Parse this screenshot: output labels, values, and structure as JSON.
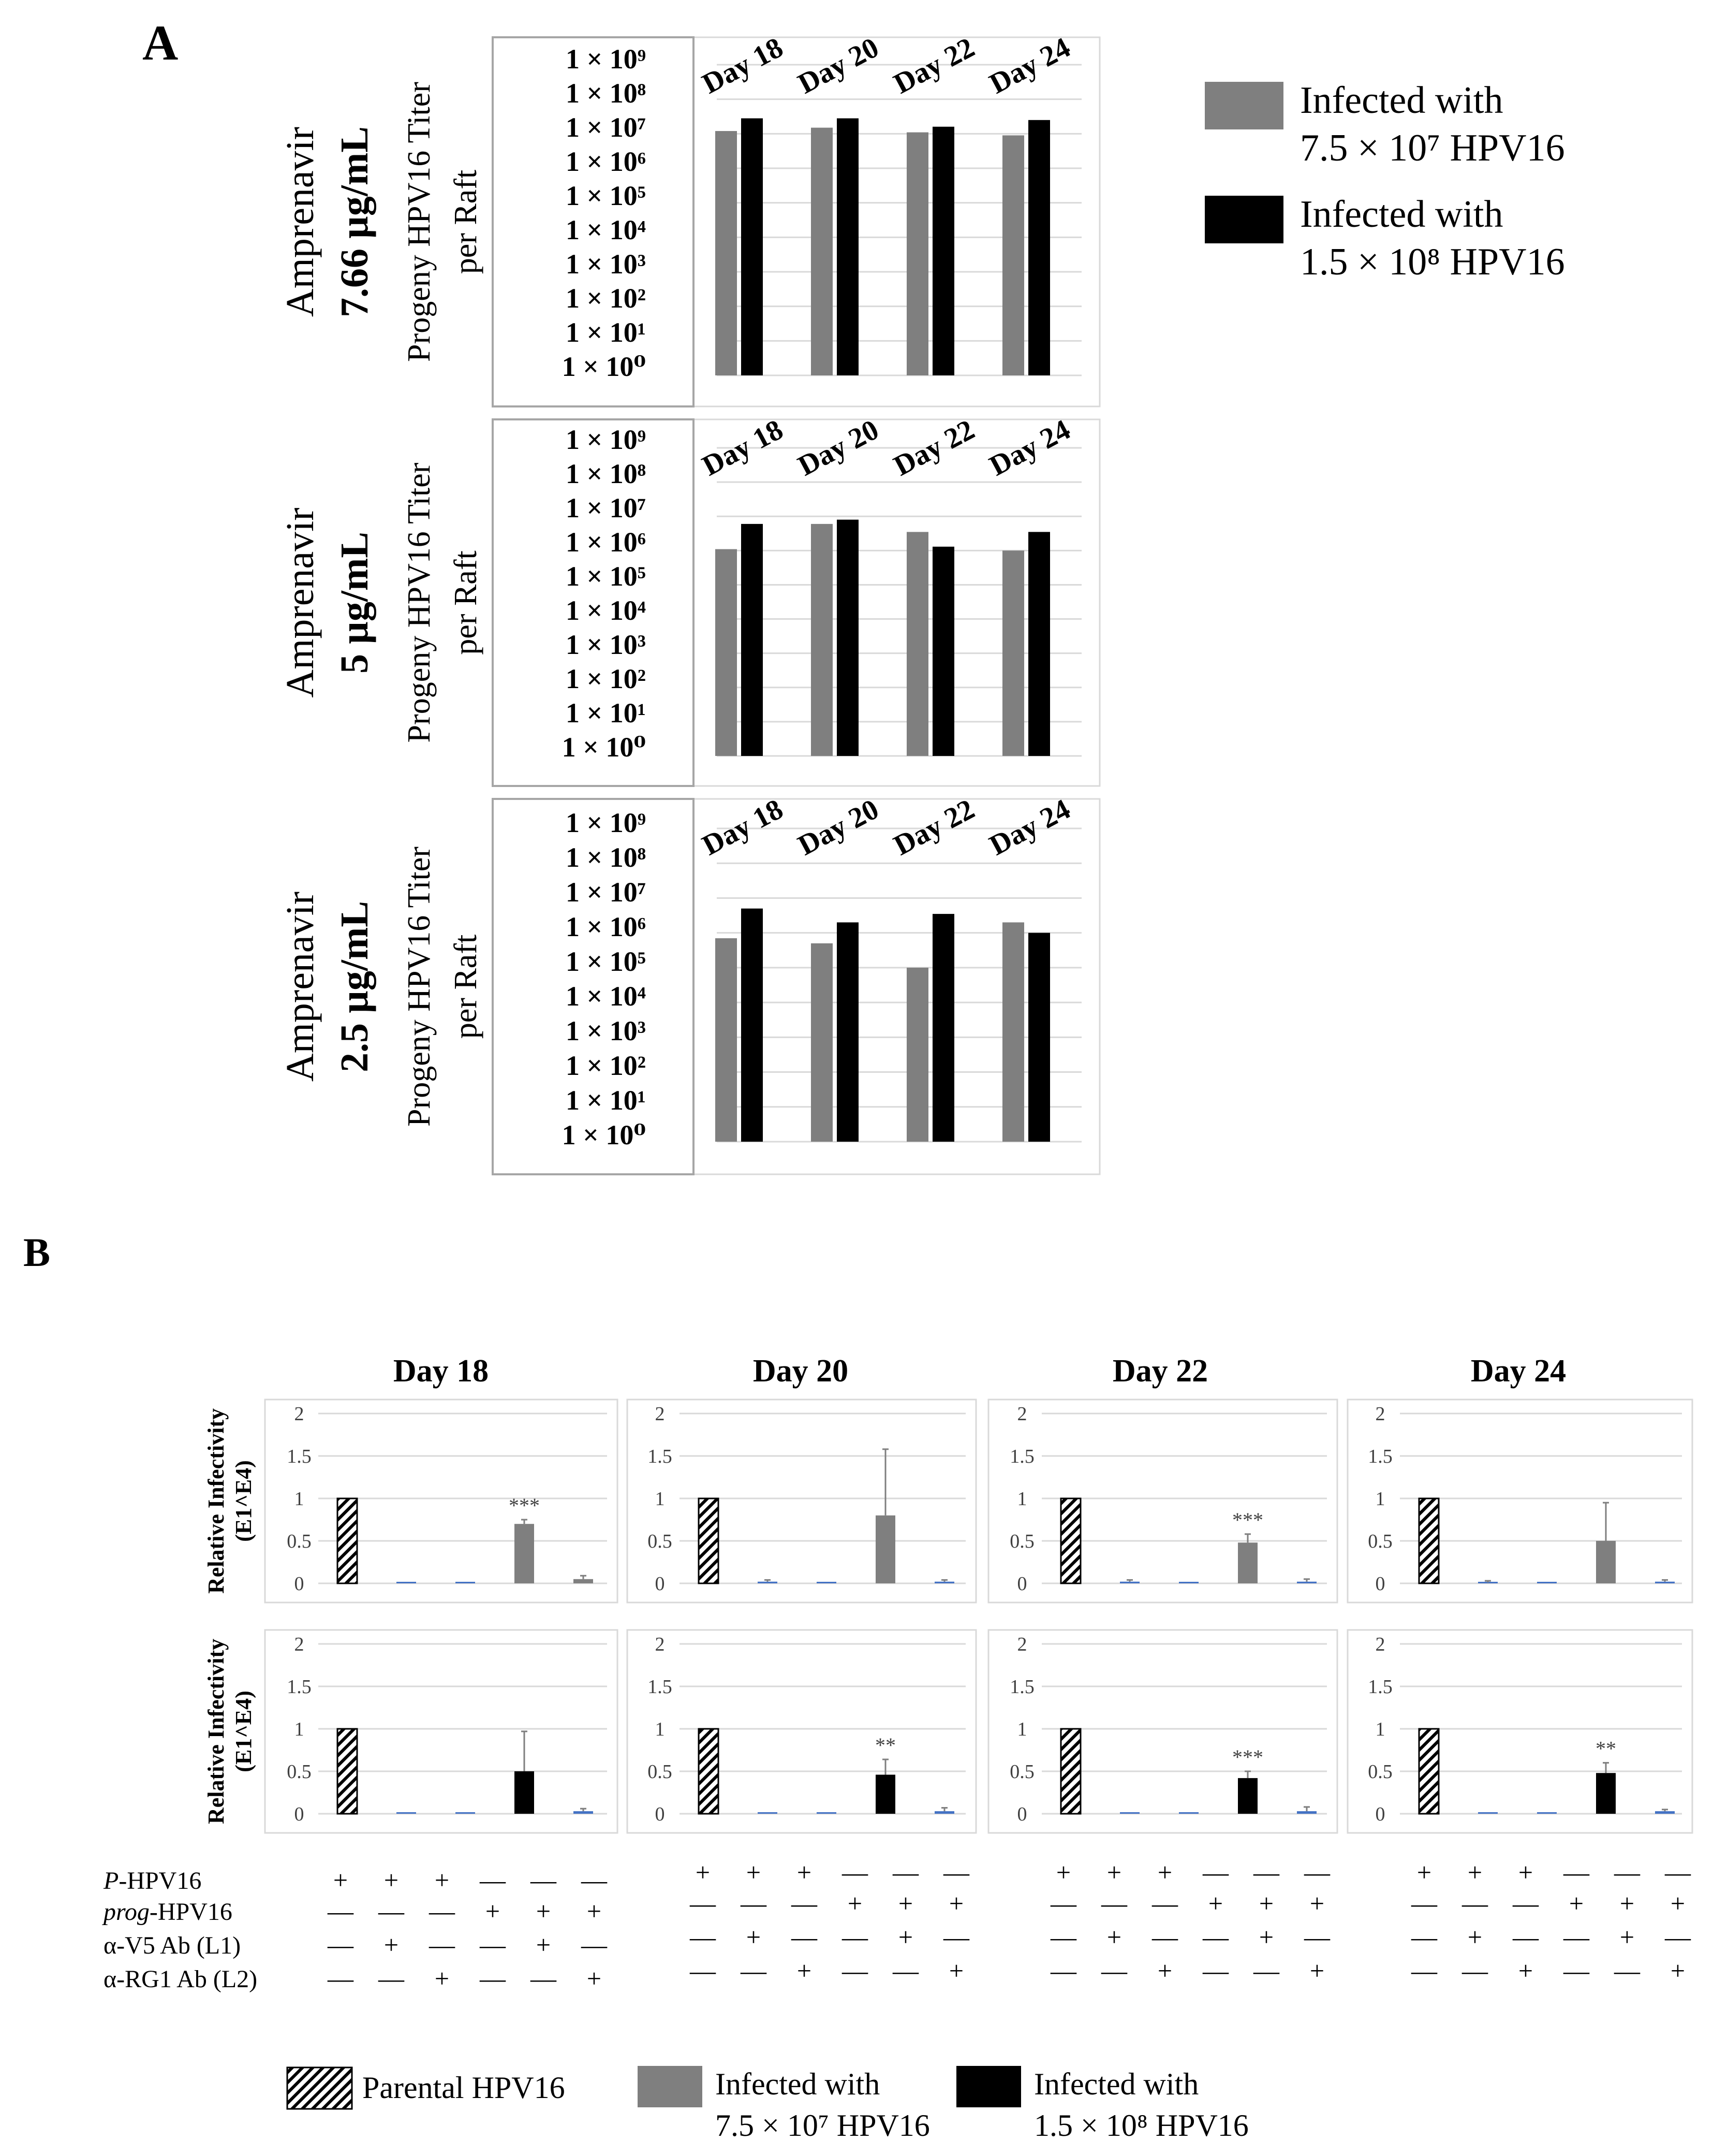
{
  "panel_a": {
    "label": "A",
    "ytick_labels": [
      "1 × 10⁹",
      "1 × 10⁸",
      "1 × 10⁷",
      "1 × 10⁶",
      "1 × 10⁵",
      "1 × 10⁴",
      "1 × 10³",
      "1 × 10²",
      "1 × 10¹",
      "1 × 10⁰"
    ],
    "ylabel_line1": "Progeny HPV16 Titer",
    "ylabel_line2": "per Raft",
    "drug": "Amprenavir",
    "legend": [
      {
        "line1": "Infected with",
        "line2": "7.5 × 10⁷ HPV16",
        "color": "#7f7f7f"
      },
      {
        "line1": "Infected with",
        "line2": "1.5 × 10⁸ HPV16",
        "color": "#000000"
      }
    ]
  },
  "panel_b": {
    "label": "B",
    "ylabel_line1": "Relative Infectivity",
    "ylabel_line2": "(E1^E4)",
    "ytick_labels": [
      "2",
      "1.5",
      "1",
      "0.5",
      "0"
    ],
    "sig_marks": [
      "***",
      "**"
    ],
    "condition_labels": [
      "P-HPV16",
      "prog-HPV16",
      "α-V5 Ab (L1)",
      "α-RG1 Ab (L2)"
    ],
    "condition_signs": [
      [
        "+",
        "+",
        "+",
        "—",
        "—",
        "—"
      ],
      [
        "—",
        "—",
        "—",
        "+",
        "+",
        "+"
      ],
      [
        "—",
        "+",
        "—",
        "—",
        "+",
        "—"
      ],
      [
        "—",
        "—",
        "+",
        "—",
        "—",
        "+"
      ]
    ],
    "legend": [
      {
        "line1": "Parental HPV16",
        "line2": "",
        "pattern": "hatched"
      },
      {
        "line1": "Infected with",
        "line2": "7.5 × 10⁷ HPV16",
        "color": "#7f7f7f"
      },
      {
        "line1": "Infected with",
        "line2": "1.5 × 10⁸ HPV16",
        "color": "#000000"
      }
    ]
  },
  "chart_data": [
    {
      "type": "bar",
      "panel": "A",
      "scale": "log10",
      "row_label": "Amprenavir",
      "concentration": "7.66 µg/mL",
      "ylabel": "Progeny HPV16 Titer per Raft",
      "ylim": [
        1,
        1000000000
      ],
      "categories": [
        "Day 18",
        "Day 20",
        "Day 22",
        "Day 24"
      ],
      "series": [
        {
          "name": "Infected with 7.5 × 10⁷ HPV16",
          "color": "#7f7f7f",
          "values": [
            12000000,
            15000000,
            11000000,
            9000000
          ]
        },
        {
          "name": "Infected with 1.5 × 10⁸ HPV16",
          "color": "#000000",
          "values": [
            28000000,
            28000000,
            16000000,
            25000000
          ]
        }
      ]
    },
    {
      "type": "bar",
      "panel": "A",
      "scale": "log10",
      "row_label": "Amprenavir",
      "concentration": "5 µg/mL",
      "ylabel": "Progeny HPV16 Titer per Raft",
      "ylim": [
        1,
        1000000000
      ],
      "categories": [
        "Day 18",
        "Day 20",
        "Day 22",
        "Day 24"
      ],
      "series": [
        {
          "name": "Infected with 7.5 × 10⁷ HPV16",
          "color": "#7f7f7f",
          "values": [
            1100000,
            6000000,
            3500000,
            1000000
          ]
        },
        {
          "name": "Infected with 1.5 × 10⁸ HPV16",
          "color": "#000000",
          "values": [
            6000000,
            8000000,
            1300000,
            3500000
          ]
        }
      ]
    },
    {
      "type": "bar",
      "panel": "A",
      "scale": "log10",
      "row_label": "Amprenavir",
      "concentration": "2.5 µg/mL",
      "ylabel": "Progeny HPV16 Titer per Raft",
      "ylim": [
        1,
        1000000000
      ],
      "categories": [
        "Day 18",
        "Day 20",
        "Day 22",
        "Day 24"
      ],
      "series": [
        {
          "name": "Infected with 7.5 × 10⁷ HPV16",
          "color": "#7f7f7f",
          "values": [
            700000,
            500000,
            100000,
            2000000
          ]
        },
        {
          "name": "Infected with 1.5 × 10⁸ HPV16",
          "color": "#000000",
          "values": [
            5000000,
            2000000,
            3500000,
            1000000
          ]
        }
      ]
    },
    {
      "type": "bar",
      "panel": "B",
      "row": 1,
      "title": "Day 18",
      "ylabel": "Relative Infectivity (E1^E4)",
      "ylim": [
        0,
        2
      ],
      "group_color": "#7f7f7f",
      "values": [
        1,
        0,
        0,
        0.7,
        0.05,
        0
      ],
      "errors": [
        0,
        0,
        0,
        0.05,
        0.04,
        0
      ],
      "significance": [
        "",
        "",
        "",
        "***",
        "",
        ""
      ]
    },
    {
      "type": "bar",
      "panel": "B",
      "row": 1,
      "title": "Day 20",
      "ylabel": "Relative Infectivity (E1^E4)",
      "ylim": [
        0,
        2
      ],
      "group_color": "#7f7f7f",
      "values": [
        1,
        0.02,
        0,
        0.8,
        0.02,
        0
      ],
      "errors": [
        0,
        0.02,
        0,
        0.78,
        0.02,
        0
      ],
      "significance": [
        "",
        "",
        "",
        "",
        "",
        ""
      ]
    },
    {
      "type": "bar",
      "panel": "B",
      "row": 1,
      "title": "Day 22",
      "ylabel": "Relative Infectivity (E1^E4)",
      "ylim": [
        0,
        2
      ],
      "group_color": "#7f7f7f",
      "values": [
        1,
        0.02,
        0,
        0.48,
        0.02,
        0
      ],
      "errors": [
        0,
        0.02,
        0,
        0.1,
        0.03,
        0
      ],
      "significance": [
        "",
        "",
        "",
        "***",
        "",
        ""
      ]
    },
    {
      "type": "bar",
      "panel": "B",
      "row": 1,
      "title": "Day 24",
      "ylabel": "Relative Infectivity (E1^E4)",
      "ylim": [
        0,
        2
      ],
      "group_color": "#7f7f7f",
      "values": [
        1,
        0.01,
        0,
        0.5,
        0.02,
        0
      ],
      "errors": [
        0,
        0.02,
        0,
        0.45,
        0.02,
        0
      ],
      "significance": [
        "",
        "",
        "",
        "",
        "",
        ""
      ]
    },
    {
      "type": "bar",
      "panel": "B",
      "row": 2,
      "title": "Day 18",
      "ylabel": "Relative Infectivity (E1^E4)",
      "ylim": [
        0,
        2
      ],
      "group_color": "#000000",
      "values": [
        1,
        0,
        0,
        0.5,
        0.03,
        0
      ],
      "errors": [
        0,
        0,
        0,
        0.47,
        0.03,
        0
      ],
      "significance": [
        "",
        "",
        "",
        "",
        "",
        ""
      ]
    },
    {
      "type": "bar",
      "panel": "B",
      "row": 2,
      "title": "Day 20",
      "ylabel": "Relative Infectivity (E1^E4)",
      "ylim": [
        0,
        2
      ],
      "group_color": "#000000",
      "values": [
        1,
        0,
        0,
        0.46,
        0.03,
        0
      ],
      "errors": [
        0,
        0,
        0,
        0.18,
        0.04,
        0
      ],
      "significance": [
        "",
        "",
        "",
        "**",
        "",
        ""
      ]
    },
    {
      "type": "bar",
      "panel": "B",
      "row": 2,
      "title": "Day 22",
      "ylabel": "Relative Infectivity (E1^E4)",
      "ylim": [
        0,
        2
      ],
      "group_color": "#000000",
      "values": [
        1,
        0,
        0,
        0.42,
        0.03,
        0
      ],
      "errors": [
        0,
        0,
        0,
        0.08,
        0.05,
        0
      ],
      "significance": [
        "",
        "",
        "",
        "***",
        "",
        ""
      ]
    },
    {
      "type": "bar",
      "panel": "B",
      "row": 2,
      "title": "Day 24",
      "ylabel": "Relative Infectivity (E1^E4)",
      "ylim": [
        0,
        2
      ],
      "group_color": "#000000",
      "values": [
        1,
        0,
        0,
        0.48,
        0.03,
        0
      ],
      "errors": [
        0,
        0,
        0,
        0.12,
        0.02,
        0
      ],
      "significance": [
        "",
        "",
        "",
        "**",
        "",
        ""
      ]
    }
  ]
}
